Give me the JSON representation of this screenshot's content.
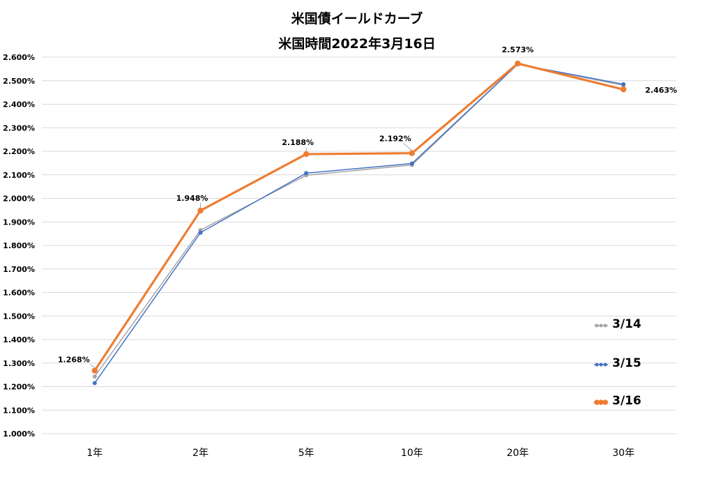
{
  "chart_data": {
    "type": "line",
    "title": "米国債イールドカーブ",
    "subtitle": "米国時間2022年3月16日",
    "categories": [
      "1年",
      "2年",
      "5年",
      "10年",
      "20年",
      "30年"
    ],
    "ylim": [
      1.0,
      2.6
    ],
    "yticks": [
      "1.000%",
      "1.100%",
      "1.200%",
      "1.300%",
      "1.400%",
      "1.500%",
      "1.600%",
      "1.700%",
      "1.800%",
      "1.900%",
      "2.000%",
      "2.100%",
      "2.200%",
      "2.300%",
      "2.400%",
      "2.500%",
      "2.600%"
    ],
    "grid": true,
    "legend_position": "right",
    "series": [
      {
        "name": "3/14",
        "color": "#a5a5a5",
        "values": [
          1.243,
          1.865,
          2.098,
          2.142,
          2.57,
          2.48
        ]
      },
      {
        "name": "3/15",
        "color": "#4472c4",
        "values": [
          1.215,
          1.854,
          2.107,
          2.148,
          2.57,
          2.485
        ]
      },
      {
        "name": "3/16",
        "color": "#ed7d31",
        "values": [
          1.268,
          1.948,
          2.188,
          2.192,
          2.573,
          2.463
        ]
      }
    ],
    "data_labels": [
      "1.268%",
      "1.948%",
      "2.188%",
      "2.192%",
      "2.573%",
      "2.463%"
    ]
  }
}
